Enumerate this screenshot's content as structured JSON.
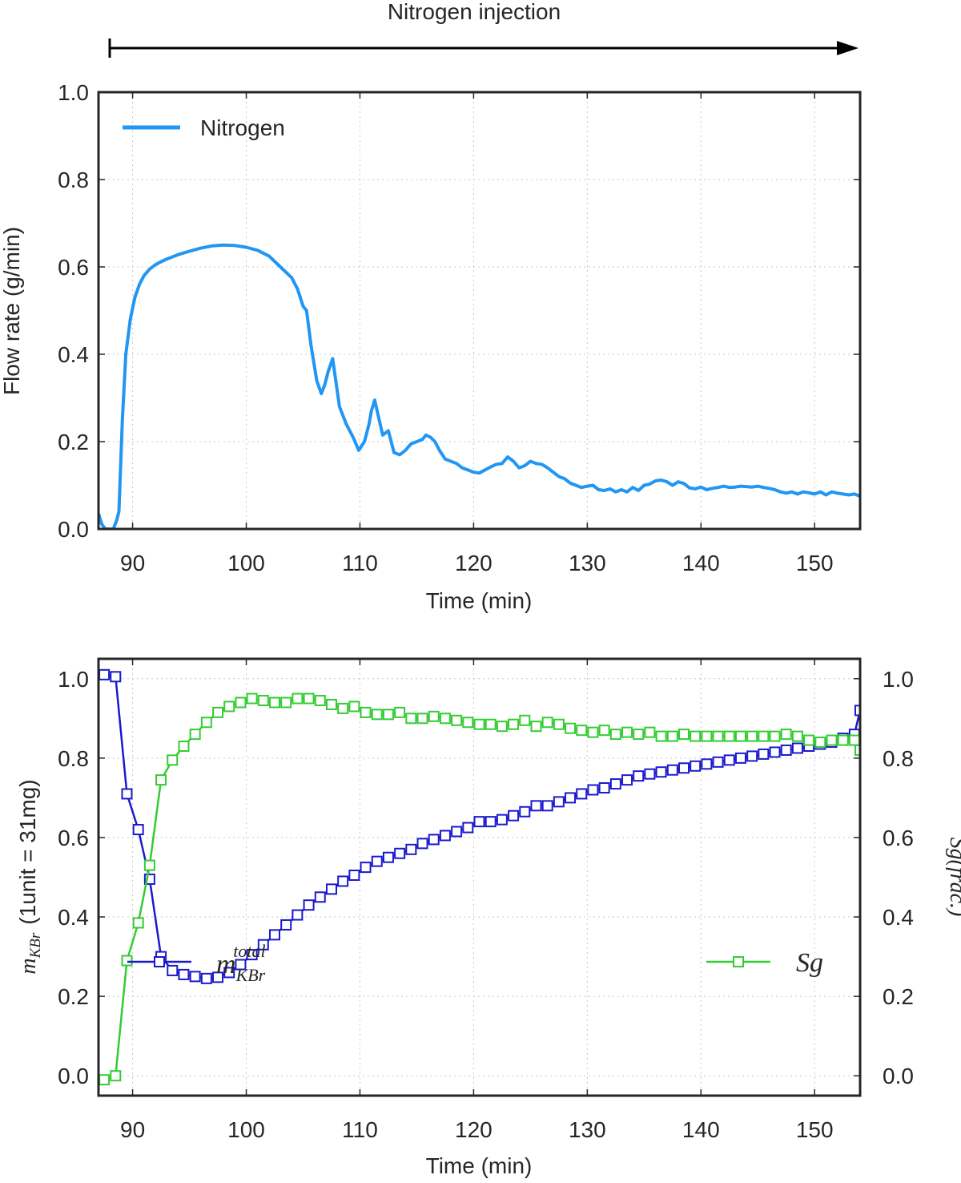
{
  "annotation": {
    "label": "Nitrogen injection"
  },
  "colors": {
    "nitrogen": "#2196f3",
    "m_kbr": "#1a1acc",
    "sg": "#33cc33",
    "axis": "#262626",
    "grid": "#c8c8c8"
  },
  "chart_data": [
    {
      "type": "line",
      "xlabel": "Time (min)",
      "ylabel": "Flow rate (g/min)",
      "xlim": [
        87,
        154
      ],
      "ylim": [
        0,
        1.0
      ],
      "grid": true,
      "legend_placement": "top-left",
      "x_ticks": [
        "90",
        "100",
        "110",
        "120",
        "130",
        "140",
        "150"
      ],
      "y_ticks": [
        "0.0",
        "0.2",
        "0.4",
        "0.6",
        "0.8",
        "1.0"
      ],
      "series": [
        {
          "name": "Nitrogen",
          "x": [
            87.0,
            87.3,
            87.6,
            88.0,
            88.3,
            88.6,
            88.8,
            89.1,
            89.4,
            89.8,
            90.2,
            90.6,
            91.0,
            91.5,
            92.0,
            92.5,
            93.0,
            94.0,
            95.0,
            96.0,
            97.0,
            98.0,
            99.0,
            100.0,
            101.0,
            102.0,
            103.0,
            104.0,
            104.5,
            105.0,
            105.3,
            105.7,
            106.2,
            106.6,
            106.9,
            107.2,
            107.6,
            108.2,
            108.8,
            109.4,
            109.9,
            110.4,
            110.8,
            111.0,
            111.3,
            111.6,
            112.0,
            112.5,
            113.0,
            113.5,
            114.0,
            114.5,
            115.0,
            115.5,
            115.8,
            116.2,
            116.6,
            117.0,
            117.5,
            118.0,
            118.5,
            119.0,
            119.5,
            120.0,
            120.5,
            121.0,
            121.5,
            122.0,
            122.5,
            123.0,
            123.5,
            124.0,
            124.5,
            125.0,
            125.5,
            126.0,
            126.5,
            127.0,
            127.5,
            128.0,
            128.5,
            129.0,
            129.5,
            130.0,
            130.5,
            131.0,
            131.5,
            132.0,
            132.5,
            133.0,
            133.5,
            134.0,
            134.5,
            135.0,
            135.5,
            136.0,
            136.5,
            137.0,
            137.5,
            138.0,
            138.5,
            139.0,
            139.5,
            140.0,
            140.5,
            141.0,
            141.5,
            142.0,
            142.5,
            143.0,
            143.5,
            144.0,
            144.5,
            145.0,
            145.5,
            146.0,
            146.5,
            147.0,
            147.5,
            148.0,
            148.5,
            149.0,
            149.5,
            150.0,
            150.5,
            151.0,
            151.5,
            152.0,
            152.5,
            153.0,
            153.5,
            154.0
          ],
          "y": [
            0.035,
            0.01,
            0.0,
            0.0,
            0.0,
            0.02,
            0.04,
            0.25,
            0.4,
            0.48,
            0.53,
            0.56,
            0.58,
            0.595,
            0.605,
            0.612,
            0.618,
            0.628,
            0.636,
            0.643,
            0.648,
            0.65,
            0.649,
            0.645,
            0.638,
            0.625,
            0.6,
            0.575,
            0.55,
            0.51,
            0.5,
            0.42,
            0.34,
            0.31,
            0.33,
            0.36,
            0.39,
            0.28,
            0.24,
            0.21,
            0.18,
            0.2,
            0.24,
            0.27,
            0.295,
            0.26,
            0.215,
            0.225,
            0.175,
            0.17,
            0.18,
            0.195,
            0.2,
            0.205,
            0.215,
            0.21,
            0.2,
            0.18,
            0.16,
            0.155,
            0.15,
            0.14,
            0.135,
            0.13,
            0.128,
            0.135,
            0.142,
            0.148,
            0.15,
            0.165,
            0.155,
            0.14,
            0.145,
            0.155,
            0.15,
            0.148,
            0.14,
            0.13,
            0.12,
            0.115,
            0.105,
            0.1,
            0.095,
            0.098,
            0.1,
            0.09,
            0.088,
            0.092,
            0.085,
            0.09,
            0.085,
            0.095,
            0.088,
            0.1,
            0.103,
            0.11,
            0.112,
            0.108,
            0.1,
            0.108,
            0.104,
            0.094,
            0.092,
            0.096,
            0.09,
            0.093,
            0.095,
            0.098,
            0.095,
            0.096,
            0.098,
            0.097,
            0.096,
            0.098,
            0.095,
            0.093,
            0.09,
            0.085,
            0.082,
            0.085,
            0.08,
            0.085,
            0.083,
            0.08,
            0.085,
            0.078,
            0.085,
            0.082,
            0.08,
            0.078,
            0.08,
            0.075
          ]
        }
      ]
    },
    {
      "type": "line",
      "xlabel": "Time (min)",
      "ylabel": "(1unit = 31mg)",
      "ylabel_math": "m",
      "ylabel_math_sub": "KBr",
      "y2label": "Sg(frac.)",
      "xlim": [
        87,
        154
      ],
      "ylim": [
        -0.05,
        1.05
      ],
      "y2lim": [
        -0.05,
        1.05
      ],
      "grid": true,
      "x_ticks": [
        "90",
        "100",
        "110",
        "120",
        "130",
        "140",
        "150"
      ],
      "y_ticks": [
        "0.0",
        "0.2",
        "0.4",
        "0.6",
        "0.8",
        "1.0"
      ],
      "y2_ticks": [
        "0.0",
        "0.2",
        "0.4",
        "0.6",
        "0.8",
        "1.0"
      ],
      "series": [
        {
          "name": "m",
          "name_sub": "KBr",
          "name_sup": "total",
          "axis": "left",
          "x": [
            87.5,
            88.5,
            89.5,
            90.5,
            91.5,
            92.5,
            93.5,
            94.5,
            95.5,
            96.5,
            97.5,
            98.5,
            99.5,
            100.5,
            101.5,
            102.5,
            103.5,
            104.5,
            105.5,
            106.5,
            107.5,
            108.5,
            109.5,
            110.5,
            111.5,
            112.5,
            113.5,
            114.5,
            115.5,
            116.5,
            117.5,
            118.5,
            119.5,
            120.5,
            121.5,
            122.5,
            123.5,
            124.5,
            125.5,
            126.5,
            127.5,
            128.5,
            129.5,
            130.5,
            131.5,
            132.5,
            133.5,
            134.5,
            135.5,
            136.5,
            137.5,
            138.5,
            139.5,
            140.5,
            141.5,
            142.5,
            143.5,
            144.5,
            145.5,
            146.5,
            147.5,
            148.5,
            149.5,
            150.5,
            151.5,
            152.5,
            153.5,
            154.0
          ],
          "y": [
            1.01,
            1.005,
            0.71,
            0.62,
            0.495,
            0.3,
            0.265,
            0.255,
            0.25,
            0.245,
            0.248,
            0.26,
            0.28,
            0.305,
            0.33,
            0.355,
            0.38,
            0.405,
            0.43,
            0.45,
            0.47,
            0.49,
            0.505,
            0.525,
            0.54,
            0.55,
            0.56,
            0.57,
            0.585,
            0.595,
            0.605,
            0.615,
            0.625,
            0.64,
            0.64,
            0.645,
            0.655,
            0.665,
            0.68,
            0.68,
            0.69,
            0.7,
            0.71,
            0.72,
            0.725,
            0.735,
            0.745,
            0.755,
            0.76,
            0.765,
            0.77,
            0.775,
            0.78,
            0.785,
            0.79,
            0.795,
            0.8,
            0.805,
            0.81,
            0.815,
            0.82,
            0.825,
            0.83,
            0.835,
            0.84,
            0.85,
            0.86,
            0.92
          ]
        },
        {
          "name": "Sg",
          "axis": "right",
          "x": [
            87.5,
            88.5,
            89.5,
            90.5,
            91.5,
            92.5,
            93.5,
            94.5,
            95.5,
            96.5,
            97.5,
            98.5,
            99.5,
            100.5,
            101.5,
            102.5,
            103.5,
            104.5,
            105.5,
            106.5,
            107.5,
            108.5,
            109.5,
            110.5,
            111.5,
            112.5,
            113.5,
            114.5,
            115.5,
            116.5,
            117.5,
            118.5,
            119.5,
            120.5,
            121.5,
            122.5,
            123.5,
            124.5,
            125.5,
            126.5,
            127.5,
            128.5,
            129.5,
            130.5,
            131.5,
            132.5,
            133.5,
            134.5,
            135.5,
            136.5,
            137.5,
            138.5,
            139.5,
            140.5,
            141.5,
            142.5,
            143.5,
            144.5,
            145.5,
            146.5,
            147.5,
            148.5,
            149.5,
            150.5,
            151.5,
            152.5,
            153.5,
            154.0
          ],
          "y": [
            -0.01,
            0.0,
            0.29,
            0.385,
            0.53,
            0.745,
            0.795,
            0.83,
            0.86,
            0.89,
            0.915,
            0.93,
            0.94,
            0.95,
            0.945,
            0.94,
            0.94,
            0.95,
            0.95,
            0.945,
            0.935,
            0.925,
            0.93,
            0.915,
            0.91,
            0.91,
            0.915,
            0.9,
            0.9,
            0.905,
            0.9,
            0.895,
            0.89,
            0.885,
            0.885,
            0.88,
            0.885,
            0.895,
            0.88,
            0.89,
            0.885,
            0.875,
            0.87,
            0.865,
            0.87,
            0.86,
            0.865,
            0.86,
            0.865,
            0.855,
            0.855,
            0.86,
            0.855,
            0.855,
            0.855,
            0.855,
            0.855,
            0.855,
            0.855,
            0.855,
            0.86,
            0.855,
            0.845,
            0.84,
            0.845,
            0.845,
            0.845,
            0.82
          ]
        }
      ]
    }
  ]
}
